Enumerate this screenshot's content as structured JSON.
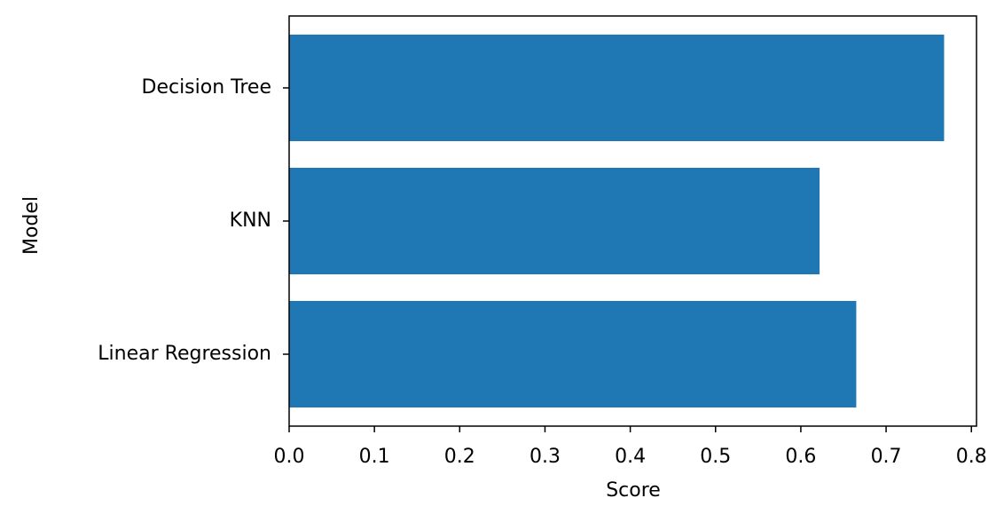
{
  "chart_data": {
    "type": "barh",
    "xlabel": "Score",
    "ylabel": "Model",
    "categories": [
      "Decision Tree",
      "KNN",
      "Linear Regression"
    ],
    "values": [
      0.768,
      0.622,
      0.665
    ],
    "color": "#1f77b4",
    "xlim": [
      0,
      0.806
    ],
    "xticks": [
      {
        "value": 0,
        "label": "0.0"
      },
      0.1,
      0.2,
      0.3,
      0.4,
      0.5,
      0.6,
      0.7,
      0.8
    ]
  }
}
